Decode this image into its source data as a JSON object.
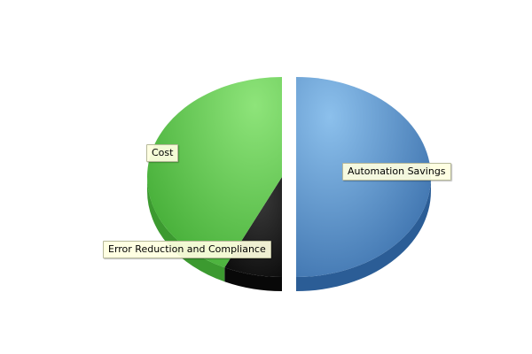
{
  "chart_data": {
    "type": "pie",
    "slices": [
      {
        "label": "Automation Savings",
        "value": 50,
        "color": "#4a86c4"
      },
      {
        "label": "Error Reduction and Compliance",
        "value": 7,
        "color": "#1e1e1e"
      },
      {
        "label": "Cost",
        "value": 43,
        "color": "#5ec94a"
      }
    ],
    "exploded": "Automation Savings",
    "three_d": true,
    "legend": "none"
  }
}
